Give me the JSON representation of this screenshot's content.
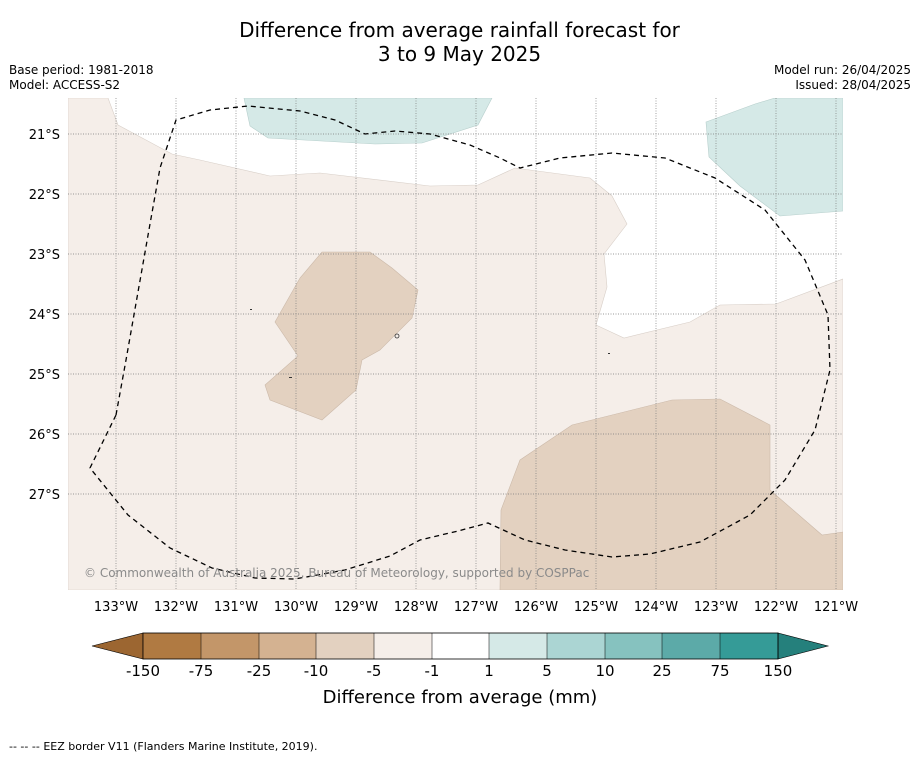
{
  "title": {
    "line1": "Difference from average rainfall forecast for",
    "line2": "3 to 9 May 2025"
  },
  "meta": {
    "base_period": "Base period: 1981-2018",
    "model": "Model: ACCESS-S2",
    "model_run": "Model run: 26/04/2025",
    "issued": "Issued: 28/04/2025"
  },
  "map": {
    "lat_labels": [
      "21°S",
      "22°S",
      "23°S",
      "24°S",
      "25°S",
      "26°S",
      "27°S"
    ],
    "lon_labels": [
      "133°W",
      "132°W",
      "131°W",
      "130°W",
      "129°W",
      "128°W",
      "127°W",
      "126°W",
      "125°W",
      "124°W",
      "123°W",
      "122°W",
      "121°W"
    ],
    "copyright": "© Commonwealth of Australia 2025, Bureau of Meteorology, supported by COSPPac",
    "colors": {
      "dry_light": "#f5eee9",
      "dry_medium": "#e3d1c0",
      "wet_light": "#d5e9e7",
      "grid": "#7a7a7a",
      "eez_border": "#000000"
    }
  },
  "legend": {
    "tick_labels": [
      "-150",
      "-75",
      "-25",
      "-10",
      "-5",
      "-1",
      "1",
      "5",
      "10",
      "25",
      "75",
      "150"
    ],
    "colors": [
      "#9c6631",
      "#b07a42",
      "#c39669",
      "#d4b291",
      "#e3d1c0",
      "#f5eee9",
      "#ffffff",
      "#d5e9e7",
      "#abd5d3",
      "#86c2bf",
      "#5caaa8",
      "#359b97",
      "#25807c"
    ],
    "label": "Difference from average (mm)"
  },
  "footer": {
    "dash_sample": "--  --  --",
    "eez_note": "EEZ border V11 (Flanders Marine Institute, 2019)."
  }
}
